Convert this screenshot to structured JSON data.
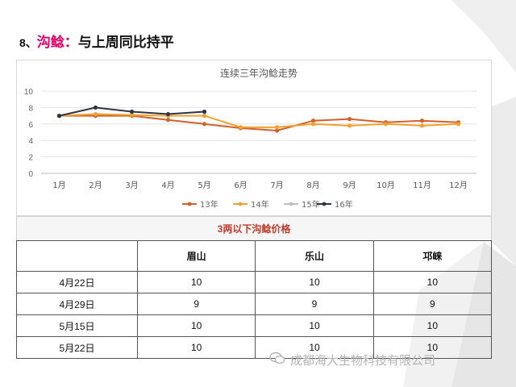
{
  "heading": {
    "number": "8、",
    "highlight": "沟鲶：",
    "rest": "与上周同比持平"
  },
  "chart_data": {
    "type": "line",
    "title": "连续三年沟鲶走势",
    "categories": [
      "1月",
      "2月",
      "3月",
      "4月",
      "5月",
      "6月",
      "7月",
      "8月",
      "9月",
      "10月",
      "11月",
      "12月"
    ],
    "ylim": [
      0,
      10
    ],
    "yticks": [
      "0",
      "2",
      "4",
      "6",
      "8",
      "10"
    ],
    "grid": true,
    "legend_position": "bottom",
    "series": [
      {
        "name": "13年",
        "color": "#d35f2a",
        "values": [
          7.0,
          7.0,
          7.0,
          6.5,
          6.0,
          5.5,
          5.2,
          6.4,
          6.6,
          6.2,
          6.4,
          6.2
        ]
      },
      {
        "name": "14年",
        "color": "#f0a030",
        "values": [
          7.0,
          7.2,
          7.1,
          7.0,
          7.0,
          5.6,
          5.6,
          6.0,
          5.8,
          6.0,
          5.8,
          6.0
        ]
      },
      {
        "name": "15年",
        "color": "#bfbfbf",
        "values": [
          null,
          null,
          null,
          null,
          null,
          null,
          null,
          null,
          null,
          null,
          null,
          null
        ]
      },
      {
        "name": "16年",
        "color": "#2e3440",
        "values": [
          7.0,
          8.0,
          7.5,
          7.2,
          7.5,
          null,
          null,
          null,
          null,
          null,
          null,
          null
        ]
      }
    ]
  },
  "table": {
    "caption": "3两以下沟鲶价格",
    "columns": [
      "",
      "眉山",
      "乐山",
      "邛崃"
    ],
    "rows": [
      [
        "4月22日",
        "10",
        "10",
        "10"
      ],
      [
        "4月29日",
        "9",
        "9",
        "9"
      ],
      [
        "5月15日",
        "10",
        "10",
        "10"
      ],
      [
        "5月22日",
        "10",
        "10",
        "10"
      ]
    ]
  },
  "watermark": "成都海大生物科技有限公司"
}
